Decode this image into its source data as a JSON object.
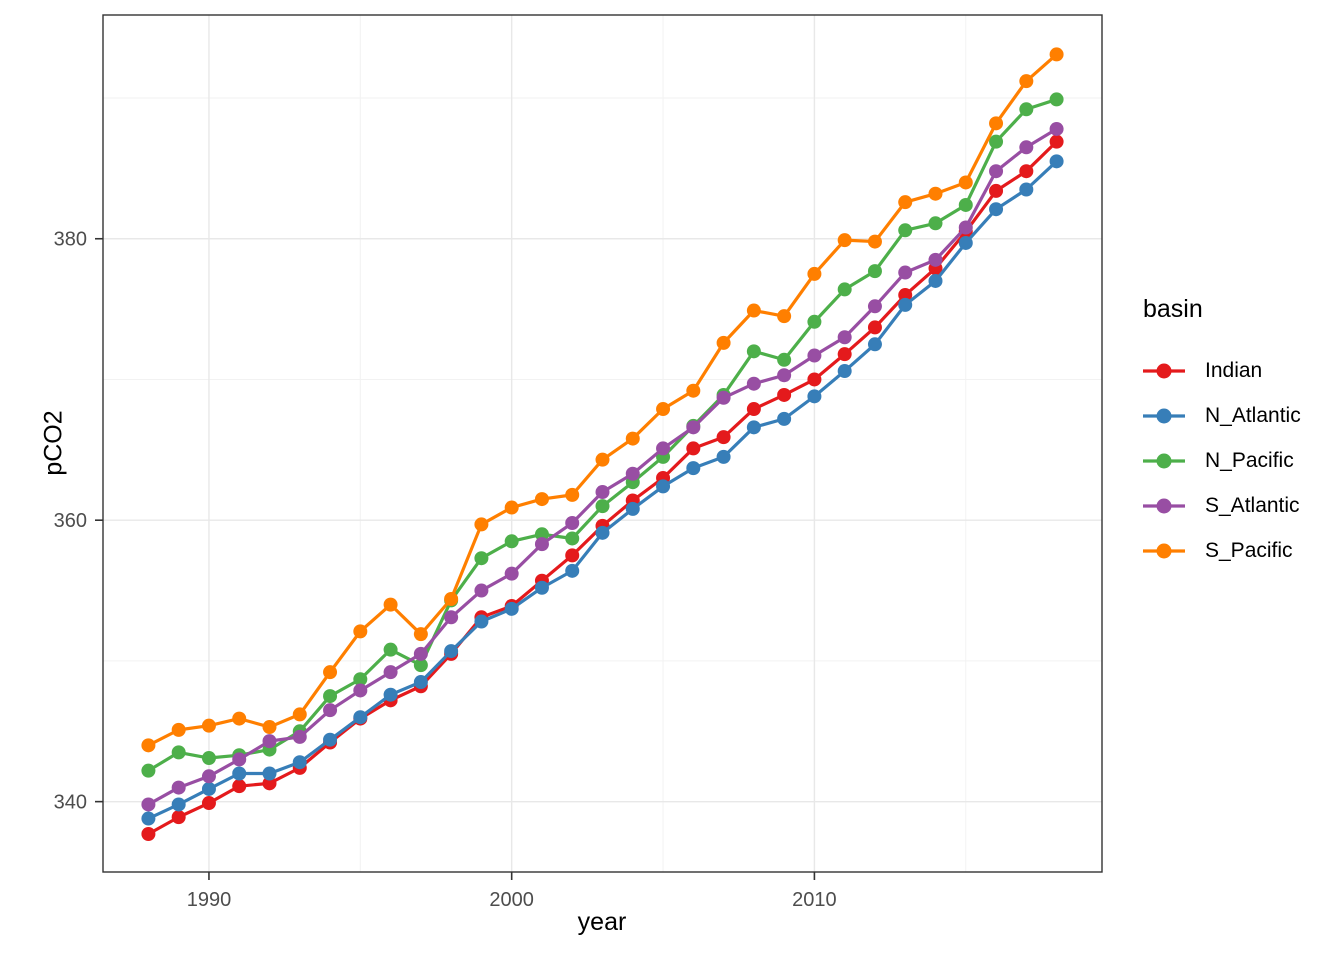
{
  "chart_data": {
    "type": "line",
    "title": "",
    "xlabel": "year",
    "ylabel": "pCO2",
    "legend_title": "basin",
    "legend_position": "right",
    "grid": true,
    "xlim": [
      1986.5,
      2019.5
    ],
    "ylim": [
      335.0,
      395.9
    ],
    "xticks": [
      1990,
      2000,
      2010
    ],
    "yticks": [
      340,
      360,
      380
    ],
    "xticks_minor": [
      1995,
      2005,
      2015
    ],
    "yticks_minor": [
      350,
      370,
      390
    ],
    "x": [
      1988,
      1989,
      1990,
      1991,
      1992,
      1993,
      1994,
      1995,
      1996,
      1997,
      1998,
      1999,
      2000,
      2001,
      2002,
      2003,
      2004,
      2005,
      2006,
      2007,
      2008,
      2009,
      2010,
      2011,
      2012,
      2013,
      2014,
      2015,
      2016,
      2017,
      2018
    ],
    "series": [
      {
        "name": "Indian",
        "color": "#E41A1C",
        "values": [
          337.7,
          338.9,
          339.9,
          341.1,
          341.3,
          342.4,
          344.2,
          345.9,
          347.2,
          348.2,
          350.5,
          353.1,
          353.9,
          355.7,
          357.5,
          359.6,
          361.4,
          363.0,
          365.1,
          365.9,
          367.9,
          368.9,
          370.0,
          371.8,
          373.7,
          376.0,
          377.9,
          380.5,
          383.4,
          384.8,
          386.9
        ]
      },
      {
        "name": "N_Atlantic",
        "color": "#377EB8",
        "values": [
          338.8,
          339.8,
          340.9,
          342.0,
          342.0,
          342.8,
          344.4,
          346.0,
          347.6,
          348.5,
          350.7,
          352.8,
          353.7,
          355.2,
          356.4,
          359.1,
          360.8,
          362.4,
          363.7,
          364.5,
          366.6,
          367.2,
          368.8,
          370.6,
          372.5,
          375.3,
          377.0,
          379.7,
          382.1,
          383.5,
          385.5
        ]
      },
      {
        "name": "N_Pacific",
        "color": "#4DAF4A",
        "values": [
          342.2,
          343.5,
          343.1,
          343.3,
          343.7,
          345.0,
          347.5,
          348.7,
          350.8,
          349.7,
          354.3,
          357.3,
          358.5,
          359.0,
          358.7,
          361.0,
          362.7,
          364.5,
          366.7,
          368.9,
          372.0,
          371.4,
          374.1,
          376.4,
          377.7,
          380.6,
          381.1,
          382.4,
          386.9,
          389.2,
          389.9
        ]
      },
      {
        "name": "S_Atlantic",
        "color": "#984EA3",
        "values": [
          339.8,
          341.0,
          341.8,
          343.0,
          344.3,
          344.6,
          346.5,
          347.9,
          349.2,
          350.5,
          353.1,
          355.0,
          356.2,
          358.3,
          359.8,
          362.0,
          363.3,
          365.1,
          366.6,
          368.7,
          369.7,
          370.3,
          371.7,
          373.0,
          375.2,
          377.6,
          378.5,
          380.8,
          384.8,
          386.5,
          387.8
        ]
      },
      {
        "name": "S_Pacific",
        "color": "#FF7F00",
        "values": [
          344.0,
          345.1,
          345.4,
          345.9,
          345.3,
          346.2,
          349.2,
          352.1,
          354.0,
          351.9,
          354.4,
          359.7,
          360.9,
          361.5,
          361.8,
          364.3,
          365.8,
          367.9,
          369.2,
          372.6,
          374.9,
          374.5,
          377.5,
          379.9,
          379.8,
          382.6,
          383.2,
          384.0,
          388.2,
          391.2,
          393.1
        ]
      }
    ],
    "style": {
      "grid_major_color": "#e8e8e8",
      "grid_minor_color": "#f2f2f2",
      "panel_border_color": "#333333",
      "tick_label_color": "#4d4d4d",
      "point_radius": 7,
      "line_width": 3.2
    }
  }
}
